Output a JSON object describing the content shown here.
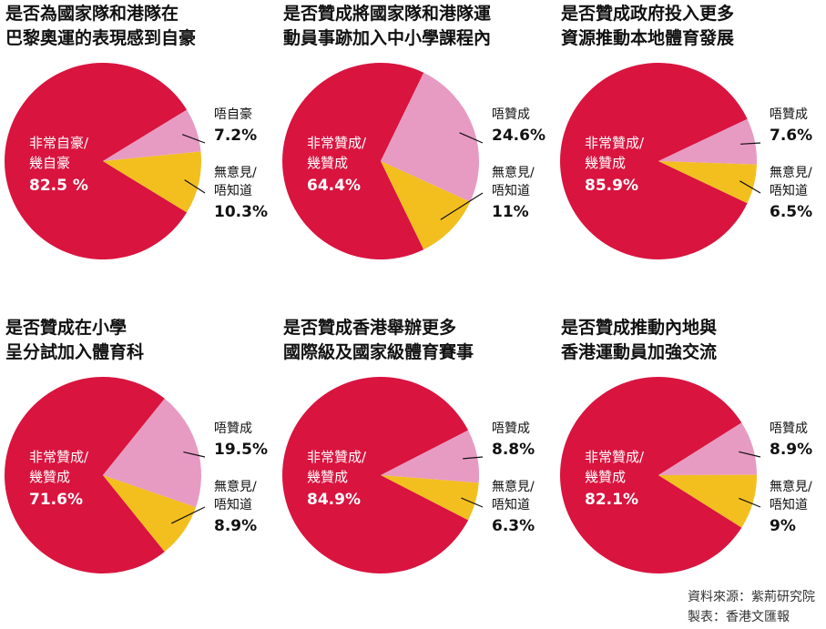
{
  "colors": {
    "agree": "#d9143f",
    "disagree": "#e79bc2",
    "neutral": "#f2bf1f"
  },
  "chart_data": [
    {
      "type": "pie",
      "title_lines": [
        "是否為國家隊和港隊在",
        "巴黎奧運的表現感到自豪"
      ],
      "slices": [
        {
          "label_lines": [
            "非常自豪/",
            "幾自豪"
          ],
          "value": 82.5,
          "value_text": "82.5 %"
        },
        {
          "label_lines": [
            "唔自豪"
          ],
          "value": 7.2,
          "value_text": "7.2%"
        },
        {
          "label_lines": [
            "無意見/",
            "唔知道"
          ],
          "value": 10.3,
          "value_text": "10.3%"
        }
      ]
    },
    {
      "type": "pie",
      "title_lines": [
        "是否贊成將國家隊和港隊運",
        "動員事跡加入中小學課程內"
      ],
      "slices": [
        {
          "label_lines": [
            "非常贊成/",
            "幾贊成"
          ],
          "value": 64.4,
          "value_text": "64.4%"
        },
        {
          "label_lines": [
            "唔贊成"
          ],
          "value": 24.6,
          "value_text": "24.6%"
        },
        {
          "label_lines": [
            "無意見/",
            "唔知道"
          ],
          "value": 11,
          "value_text": "11%"
        }
      ]
    },
    {
      "type": "pie",
      "title_lines": [
        "是否贊成政府投入更多",
        "資源推動本地體育發展"
      ],
      "slices": [
        {
          "label_lines": [
            "非常贊成/",
            "幾贊成"
          ],
          "value": 85.9,
          "value_text": "85.9%"
        },
        {
          "label_lines": [
            "唔贊成"
          ],
          "value": 7.6,
          "value_text": "7.6%"
        },
        {
          "label_lines": [
            "無意見/",
            "唔知道"
          ],
          "value": 6.5,
          "value_text": "6.5%"
        }
      ]
    },
    {
      "type": "pie",
      "title_lines": [
        "是否贊成在小學",
        "呈分試加入體育科"
      ],
      "slices": [
        {
          "label_lines": [
            "非常贊成/",
            "幾贊成"
          ],
          "value": 71.6,
          "value_text": "71.6%"
        },
        {
          "label_lines": [
            "唔贊成"
          ],
          "value": 19.5,
          "value_text": "19.5%"
        },
        {
          "label_lines": [
            "無意見/",
            "唔知道"
          ],
          "value": 8.9,
          "value_text": "8.9%"
        }
      ]
    },
    {
      "type": "pie",
      "title_lines": [
        "是否贊成香港舉辦更多",
        "國際級及國家級體育賽事"
      ],
      "slices": [
        {
          "label_lines": [
            "非常贊成/",
            "幾贊成"
          ],
          "value": 84.9,
          "value_text": "84.9%"
        },
        {
          "label_lines": [
            "唔贊成"
          ],
          "value": 8.8,
          "value_text": "8.8%"
        },
        {
          "label_lines": [
            "無意見/",
            "唔知道"
          ],
          "value": 6.3,
          "value_text": "6.3%"
        }
      ]
    },
    {
      "type": "pie",
      "title_lines": [
        "是否贊成推動內地與",
        "香港運動員加強交流"
      ],
      "slices": [
        {
          "label_lines": [
            "非常贊成/",
            "幾贊成"
          ],
          "value": 82.1,
          "value_text": "82.1%"
        },
        {
          "label_lines": [
            "唔贊成"
          ],
          "value": 8.9,
          "value_text": "8.9%"
        },
        {
          "label_lines": [
            "無意見/",
            "唔知道"
          ],
          "value": 9,
          "value_text": "9%"
        }
      ]
    }
  ],
  "source": {
    "line1": "資料來源：紫荊研究院",
    "line2": "製表：香港文匯報"
  }
}
